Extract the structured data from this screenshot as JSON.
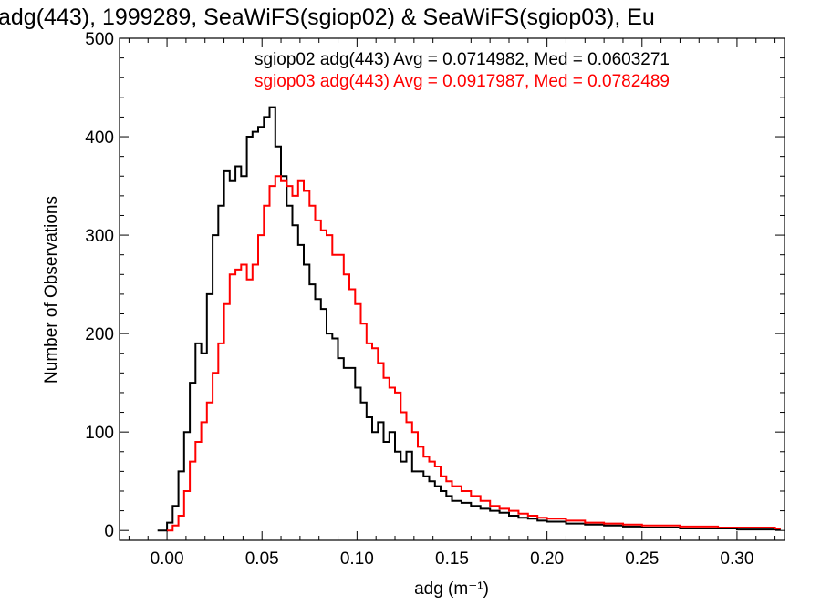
{
  "chart_data": {
    "type": "line",
    "title": "adg(443), 1999289, SeaWiFS(sgiop02) & SeaWiFS(sgiop03), Eu",
    "xlabel": "adg (m⁻¹)",
    "ylabel": "Number of Observations",
    "xlim": [
      -0.025,
      0.325
    ],
    "ylim": [
      -10,
      500
    ],
    "xticks": [
      0.0,
      0.05,
      0.1,
      0.15,
      0.2,
      0.25,
      0.3
    ],
    "xtick_labels": [
      "0.00",
      "0.05",
      "0.10",
      "0.15",
      "0.20",
      "0.25",
      "0.30"
    ],
    "yticks": [
      0,
      100,
      200,
      300,
      400,
      500
    ],
    "ytick_labels": [
      "0",
      "100",
      "200",
      "300",
      "400",
      "500"
    ],
    "grid": false,
    "legend_position": "top-right",
    "series": [
      {
        "name": "sgiop02 adg(443) Avg = 0.0714982, Med = 0.0603271",
        "color": "#000000",
        "x": [
          -0.005,
          0.0,
          0.003,
          0.006,
          0.009,
          0.012,
          0.015,
          0.018,
          0.021,
          0.024,
          0.027,
          0.03,
          0.033,
          0.036,
          0.039,
          0.042,
          0.045,
          0.048,
          0.051,
          0.054,
          0.057,
          0.06,
          0.063,
          0.066,
          0.069,
          0.072,
          0.075,
          0.078,
          0.081,
          0.084,
          0.087,
          0.09,
          0.093,
          0.096,
          0.099,
          0.102,
          0.105,
          0.108,
          0.111,
          0.114,
          0.117,
          0.12,
          0.123,
          0.126,
          0.129,
          0.132,
          0.135,
          0.138,
          0.141,
          0.144,
          0.147,
          0.15,
          0.155,
          0.16,
          0.165,
          0.17,
          0.175,
          0.18,
          0.185,
          0.19,
          0.195,
          0.2,
          0.21,
          0.22,
          0.23,
          0.24,
          0.25,
          0.26,
          0.27,
          0.28,
          0.29,
          0.3,
          0.31,
          0.32
        ],
        "y": [
          0,
          8,
          25,
          60,
          100,
          150,
          190,
          180,
          240,
          300,
          330,
          365,
          355,
          370,
          360,
          400,
          405,
          410,
          420,
          430,
          390,
          360,
          330,
          310,
          290,
          270,
          250,
          235,
          225,
          200,
          195,
          175,
          165,
          165,
          145,
          130,
          115,
          100,
          110,
          90,
          100,
          80,
          70,
          80,
          60,
          60,
          55,
          50,
          45,
          40,
          35,
          30,
          28,
          25,
          22,
          20,
          18,
          15,
          13,
          12,
          10,
          9,
          7,
          6,
          5,
          4,
          3,
          3,
          2,
          2,
          2,
          1,
          1,
          1
        ]
      },
      {
        "name": "sgiop03 adg(443) Avg = 0.0917987, Med = 0.0782489",
        "color": "#ff0000",
        "x": [
          0.0,
          0.003,
          0.006,
          0.009,
          0.012,
          0.015,
          0.018,
          0.021,
          0.024,
          0.027,
          0.03,
          0.033,
          0.036,
          0.039,
          0.042,
          0.045,
          0.048,
          0.051,
          0.054,
          0.057,
          0.06,
          0.063,
          0.066,
          0.069,
          0.072,
          0.075,
          0.078,
          0.081,
          0.084,
          0.087,
          0.09,
          0.093,
          0.096,
          0.099,
          0.102,
          0.105,
          0.108,
          0.111,
          0.114,
          0.117,
          0.12,
          0.123,
          0.126,
          0.129,
          0.132,
          0.135,
          0.138,
          0.141,
          0.144,
          0.147,
          0.15,
          0.155,
          0.16,
          0.165,
          0.17,
          0.175,
          0.18,
          0.185,
          0.19,
          0.195,
          0.2,
          0.21,
          0.22,
          0.23,
          0.24,
          0.25,
          0.26,
          0.27,
          0.28,
          0.29,
          0.3,
          0.31,
          0.32
        ],
        "y": [
          0,
          5,
          15,
          40,
          70,
          90,
          110,
          130,
          160,
          190,
          230,
          260,
          265,
          270,
          255,
          270,
          300,
          330,
          350,
          360,
          355,
          350,
          340,
          355,
          345,
          330,
          315,
          305,
          300,
          280,
          280,
          260,
          245,
          230,
          210,
          190,
          185,
          170,
          155,
          145,
          140,
          120,
          110,
          100,
          85,
          75,
          70,
          65,
          55,
          50,
          45,
          40,
          35,
          30,
          25,
          22,
          20,
          17,
          15,
          13,
          12,
          10,
          8,
          7,
          6,
          5,
          5,
          4,
          4,
          3,
          3,
          3,
          2
        ]
      }
    ]
  }
}
